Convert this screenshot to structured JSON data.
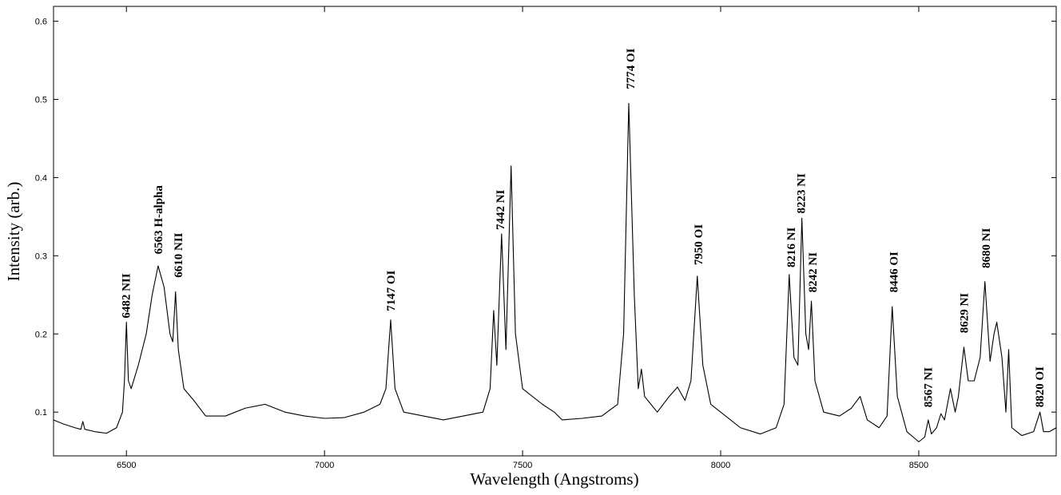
{
  "chart_data": {
    "type": "line",
    "x_label": "Wavelength (Angstroms)",
    "y_label": "Intensity (arb.)",
    "xlim": [
      6316,
      8847
    ],
    "ylim": [
      0.044,
      0.619
    ],
    "xticks": [
      6500,
      7000,
      7500,
      8000,
      8500
    ],
    "yticks": [
      0.1,
      0.2,
      0.3,
      0.4,
      0.5,
      0.6
    ],
    "grid": false,
    "series": [
      {
        "color": "#000000",
        "x": [
          6316,
          6340,
          6370,
          6385,
          6390,
          6395,
          6420,
          6450,
          6475,
          6490,
          6495,
          6500,
          6505,
          6512,
          6530,
          6550,
          6565,
          6580,
          6595,
          6610,
          6617,
          6624,
          6631,
          6645,
          6670,
          6700,
          6750,
          6800,
          6850,
          6900,
          6950,
          7000,
          7050,
          7100,
          7140,
          7155,
          7167,
          7178,
          7200,
          7250,
          7300,
          7350,
          7400,
          7418,
          7427,
          7435,
          7447,
          7458,
          7471,
          7482,
          7500,
          7550,
          7580,
          7600,
          7650,
          7700,
          7740,
          7755,
          7768,
          7782,
          7792,
          7800,
          7808,
          7840,
          7870,
          7891,
          7910,
          7925,
          7941,
          7955,
          7975,
          8000,
          8050,
          8100,
          8140,
          8160,
          8173,
          8185,
          8195,
          8205,
          8215,
          8222,
          8229,
          8238,
          8260,
          8300,
          8330,
          8352,
          8370,
          8400,
          8420,
          8433,
          8446,
          8470,
          8500,
          8515,
          8524,
          8532,
          8545,
          8556,
          8565,
          8580,
          8592,
          8600,
          8614,
          8625,
          8640,
          8655,
          8667,
          8680,
          8690,
          8697,
          8710,
          8720,
          8727,
          8735,
          8760,
          8790,
          8806,
          8815,
          8830,
          8847
        ],
        "values": [
          0.09,
          0.085,
          0.08,
          0.078,
          0.088,
          0.078,
          0.075,
          0.073,
          0.08,
          0.1,
          0.14,
          0.215,
          0.14,
          0.13,
          0.16,
          0.2,
          0.25,
          0.287,
          0.26,
          0.2,
          0.19,
          0.254,
          0.18,
          0.13,
          0.115,
          0.095,
          0.095,
          0.105,
          0.11,
          0.1,
          0.095,
          0.092,
          0.093,
          0.1,
          0.11,
          0.13,
          0.218,
          0.13,
          0.1,
          0.095,
          0.09,
          0.095,
          0.1,
          0.13,
          0.23,
          0.16,
          0.328,
          0.18,
          0.415,
          0.2,
          0.13,
          0.11,
          0.1,
          0.09,
          0.092,
          0.095,
          0.11,
          0.2,
          0.495,
          0.25,
          0.13,
          0.155,
          0.12,
          0.1,
          0.12,
          0.132,
          0.115,
          0.14,
          0.274,
          0.16,
          0.11,
          0.1,
          0.08,
          0.072,
          0.08,
          0.11,
          0.276,
          0.17,
          0.16,
          0.348,
          0.2,
          0.18,
          0.242,
          0.14,
          0.1,
          0.095,
          0.105,
          0.12,
          0.09,
          0.08,
          0.095,
          0.235,
          0.12,
          0.075,
          0.062,
          0.068,
          0.09,
          0.072,
          0.08,
          0.098,
          0.09,
          0.13,
          0.1,
          0.12,
          0.183,
          0.14,
          0.14,
          0.17,
          0.267,
          0.165,
          0.2,
          0.215,
          0.17,
          0.1,
          0.18,
          0.08,
          0.07,
          0.075,
          0.1,
          0.075,
          0.075,
          0.08
        ]
      }
    ],
    "annotations": [
      {
        "text": "6482 NII",
        "x": 6499,
        "y": 0.22
      },
      {
        "text": "6563 H-alpha",
        "x": 6580,
        "y": 0.302
      },
      {
        "text": "6610 NII",
        "x": 6631,
        "y": 0.272
      },
      {
        "text": "7147 OI",
        "x": 7167,
        "y": 0.229
      },
      {
        "text": "7442 NI",
        "x": 7443,
        "y": 0.333
      },
      {
        "text": "7774 OI",
        "x": 7772,
        "y": 0.513
      },
      {
        "text": "7950 OI",
        "x": 7943,
        "y": 0.288
      },
      {
        "text": "8216 NI",
        "x": 8177,
        "y": 0.285
      },
      {
        "text": "8223 NI",
        "x": 8203,
        "y": 0.354
      },
      {
        "text": "8242 NI",
        "x": 8232,
        "y": 0.253
      },
      {
        "text": "8446 OI",
        "x": 8437,
        "y": 0.253
      },
      {
        "text": "8567 NI",
        "x": 8523,
        "y": 0.106
      },
      {
        "text": "8629 NI",
        "x": 8614,
        "y": 0.201
      },
      {
        "text": "8680 NI",
        "x": 8670,
        "y": 0.284
      },
      {
        "text": "8820 OI",
        "x": 8805,
        "y": 0.106
      }
    ]
  }
}
